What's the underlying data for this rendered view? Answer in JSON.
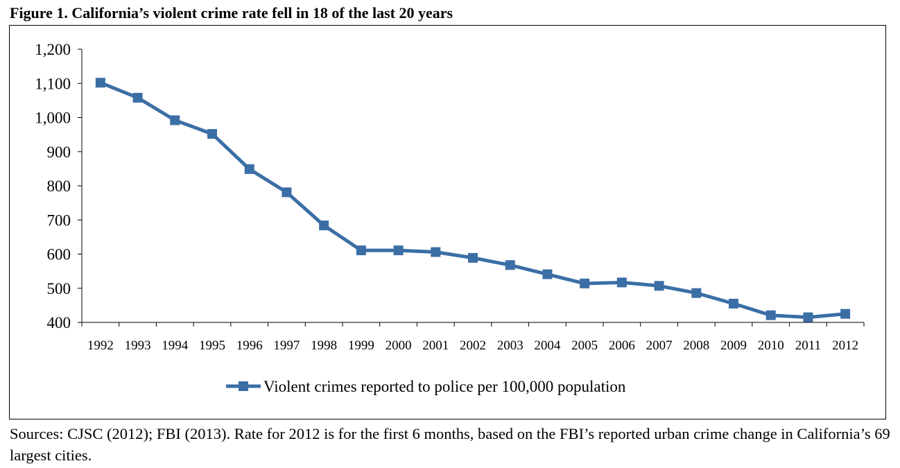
{
  "figure": {
    "title": "Figure 1.  California’s violent crime rate fell in 18 of the last 20 years",
    "sources": "Sources: CJSC (2012); FBI (2013).  Rate for 2012 is for the first 6 months, based on the FBI’s reported urban crime change in California’s 69 largest cities."
  },
  "colors": {
    "series": "#3b6ea5",
    "axis": "#000000"
  },
  "chart_data": {
    "type": "line",
    "title": "California’s violent crime rate fell in 18 of the last 20 years",
    "xlabel": "",
    "ylabel": "",
    "x": [
      "1992",
      "1993",
      "1994",
      "1995",
      "1996",
      "1997",
      "1998",
      "1999",
      "2000",
      "2001",
      "2002",
      "2003",
      "2004",
      "2005",
      "2006",
      "2007",
      "2008",
      "2009",
      "2010",
      "2011",
      "2012"
    ],
    "yticks": [
      "400",
      "500",
      "600",
      "700",
      "800",
      "900",
      "1,000",
      "1,100",
      "1,200"
    ],
    "ylim": [
      400,
      1200
    ],
    "grid": false,
    "legend": "bottom-center",
    "marker": "square",
    "series": [
      {
        "name": "Violent crimes reported to police per 100,000 population",
        "values": [
          1102,
          1058,
          992,
          952,
          849,
          781,
          684,
          611,
          611,
          606,
          589,
          568,
          541,
          514,
          517,
          507,
          486,
          455,
          421,
          415,
          425
        ]
      }
    ]
  }
}
